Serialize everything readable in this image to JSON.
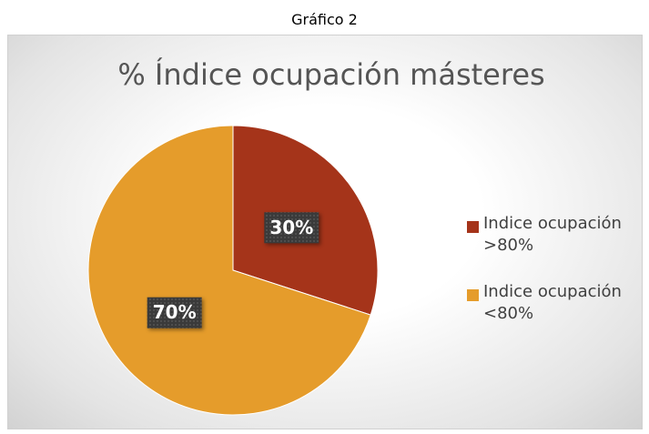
{
  "chart_data": {
    "type": "pie",
    "caption": "Gráfico 2",
    "title": "% Índice ocupación másteres",
    "categories": [
      "Indice ocupación >80%",
      "Indice ocupación <80%"
    ],
    "values": [
      30,
      70
    ],
    "value_labels": [
      "30%",
      "70%"
    ],
    "colors": [
      "#a5341a",
      "#e59c2b"
    ],
    "legend": "right"
  }
}
